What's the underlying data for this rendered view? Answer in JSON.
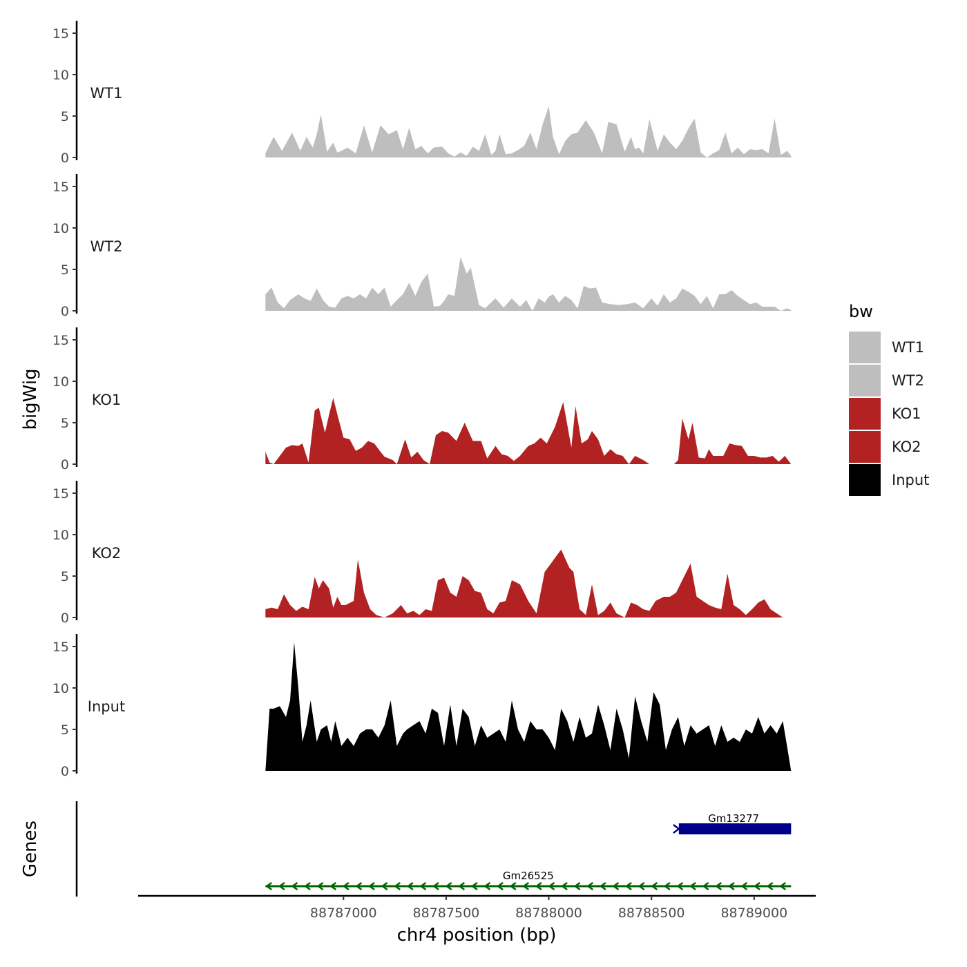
{
  "chart_data": {
    "type": "area",
    "title": "",
    "ylabel": "bigWig",
    "genes_label": "Genes",
    "xlabel": "chr4 position (bp)",
    "xlim": [
      88786000,
      88789300
    ],
    "ylim": [
      0,
      16
    ],
    "yticks": [
      "0",
      "5",
      "10",
      "15"
    ],
    "xticks": [
      {
        "pos": 88787000,
        "label": "88787000"
      },
      {
        "pos": 88787500,
        "label": "88787500"
      },
      {
        "pos": 88788000,
        "label": "88788000"
      },
      {
        "pos": 88788500,
        "label": "88788500"
      },
      {
        "pos": 88789000,
        "label": "88789000"
      }
    ],
    "legend": {
      "title": "bw",
      "position": "right",
      "entries": [
        {
          "label": "WT1",
          "color": "#bebebe"
        },
        {
          "label": "WT2",
          "color": "#bebebe"
        },
        {
          "label": "KO1",
          "color": "#b22222"
        },
        {
          "label": "KO2",
          "color": "#b22222"
        },
        {
          "label": "Input",
          "color": "#000000"
        }
      ]
    },
    "series": [
      {
        "name": "WT1",
        "color": "#bebebe",
        "x": [
          88786620,
          88786660,
          88786700,
          88786750,
          88786790,
          88786820,
          88786850,
          88786870,
          88786890,
          88786920,
          88786950,
          88786970,
          88786990,
          88787020,
          88787060,
          88787100,
          88787140,
          88787180,
          88787220,
          88787260,
          88787290,
          88787320,
          88787350,
          88787380,
          88787410,
          88787440,
          88787480,
          88787510,
          88787540,
          88787570,
          88787600,
          88787630,
          88787660,
          88787690,
          88787720,
          88787740,
          88787760,
          88787790,
          88787820,
          88787850,
          88787880,
          88787910,
          88787940,
          88787970,
          88788000,
          88788020,
          88788050,
          88788080,
          88788110,
          88788140,
          88788180,
          88788220,
          88788260,
          88788290,
          88788330,
          88788370,
          88788400,
          88788420,
          88788440,
          88788460,
          88788490,
          88788530,
          88788560,
          88788590,
          88788620,
          88788650,
          88788680,
          88788710,
          88788740,
          88788770,
          88788800,
          88788830,
          88788860,
          88788890,
          88788920,
          88788950,
          88788980,
          88789010,
          88789040,
          88789070,
          88789100,
          88789130,
          88789160,
          88789180
        ],
        "y": [
          0.5,
          2.5,
          0.8,
          3.0,
          0.8,
          2.5,
          1.2,
          2.8,
          5.2,
          0.7,
          1.8,
          0.6,
          0.8,
          1.2,
          0.5,
          3.9,
          0.6,
          3.9,
          2.8,
          3.3,
          1.0,
          3.6,
          1.0,
          1.4,
          0.5,
          1.2,
          1.3,
          0.5,
          0.1,
          0.6,
          0.2,
          1.3,
          0.8,
          2.8,
          0.3,
          0.8,
          2.8,
          0.4,
          0.5,
          0.9,
          1.4,
          3.0,
          1.0,
          4.0,
          6.2,
          2.5,
          0.4,
          2.0,
          2.8,
          3.0,
          4.5,
          3.0,
          0.5,
          4.3,
          4.0,
          0.7,
          2.5,
          1.0,
          1.2,
          0.5,
          4.6,
          0.8,
          2.8,
          1.8,
          1.0,
          2.0,
          3.5,
          4.7,
          0.6,
          0.0,
          0.5,
          0.9,
          3.0,
          0.5,
          1.2,
          0.4,
          1.0,
          0.9,
          1.0,
          0.5,
          4.7,
          0.3,
          0.8,
          0.2
        ]
      },
      {
        "name": "WT2",
        "color": "#bebebe",
        "x": [
          88786620,
          88786650,
          88786680,
          88786710,
          88786740,
          88786780,
          88786810,
          88786840,
          88786870,
          88786900,
          88786930,
          88786960,
          88786990,
          88787020,
          88787050,
          88787080,
          88787110,
          88787140,
          88787170,
          88787200,
          88787230,
          88787260,
          88787290,
          88787320,
          88787350,
          88787380,
          88787410,
          88787440,
          88787470,
          88787490,
          88787510,
          88787540,
          88787570,
          88787600,
          88787620,
          88787640,
          88787660,
          88787690,
          88787710,
          88787740,
          88787780,
          88787820,
          88787860,
          88787890,
          88787920,
          88787950,
          88787980,
          88788000,
          88788020,
          88788050,
          88788080,
          88788110,
          88788140,
          88788170,
          88788200,
          88788230,
          88788260,
          88788300,
          88788340,
          88788380,
          88788420,
          88788460,
          88788500,
          88788530,
          88788560,
          88788590,
          88788620,
          88788650,
          88788680,
          88788710,
          88788740,
          88788770,
          88788800,
          88788830,
          88788860,
          88788890,
          88788920,
          88788950,
          88788980,
          88789010,
          88789040,
          88789070,
          88789100,
          88789130,
          88789160,
          88789180
        ],
        "y": [
          2.0,
          2.8,
          1.0,
          0.3,
          1.3,
          2.0,
          1.5,
          1.2,
          2.7,
          1.3,
          0.5,
          0.4,
          1.5,
          1.8,
          1.5,
          2.0,
          1.5,
          2.8,
          2.0,
          2.8,
          0.5,
          1.3,
          2.0,
          3.4,
          1.8,
          3.5,
          4.5,
          0.5,
          0.6,
          1.2,
          2.0,
          1.8,
          6.5,
          4.5,
          5.2,
          3.0,
          0.7,
          0.3,
          0.8,
          1.5,
          0.4,
          1.5,
          0.5,
          1.3,
          0.0,
          1.5,
          1.0,
          1.7,
          2.0,
          1.0,
          1.8,
          1.3,
          0.3,
          3.0,
          2.7,
          2.8,
          1.0,
          0.8,
          0.7,
          0.8,
          1.0,
          0.3,
          1.5,
          0.6,
          2.0,
          1.0,
          1.5,
          2.7,
          2.3,
          1.8,
          0.8,
          1.8,
          0.3,
          2.0,
          2.0,
          2.5,
          1.8,
          1.3,
          0.8,
          1.0,
          0.5,
          0.5,
          0.5,
          0.0,
          0.3,
          0.1
        ]
      },
      {
        "name": "KO1",
        "color": "#b22222",
        "x": [
          88786620,
          88786640,
          88786660,
          88786690,
          88786720,
          88786750,
          88786780,
          88786800,
          88786830,
          88786860,
          88786880,
          88786910,
          88786930,
          88786950,
          88786970,
          88787000,
          88787030,
          88787060,
          88787090,
          88787120,
          88787150,
          88787180,
          88787200,
          88787240,
          88787260,
          88787300,
          88787330,
          88787360,
          88787390,
          88787420,
          88787450,
          88787480,
          88787510,
          88787550,
          88787590,
          88787630,
          88787670,
          88787700,
          88787740,
          88787770,
          88787800,
          88787830,
          88787860,
          88787900,
          88787930,
          88787960,
          88787990,
          88788030,
          88788070,
          88788110,
          88788130,
          88788160,
          88788190,
          88788210,
          88788240,
          88788270,
          88788300,
          88788330,
          88788360,
          88788390,
          88788420,
          88788460,
          88788490,
          88788520,
          88788530,
          88788550,
          88788580,
          88788610,
          88788630,
          88788650,
          88788680,
          88788700,
          88788730,
          88788760,
          88788780,
          88788800,
          88788820,
          88788850,
          88788880,
          88788910,
          88788940,
          88788970,
          88789000,
          88789030,
          88789060,
          88789090,
          88789120,
          88789150,
          88789180
        ],
        "y": [
          1.5,
          0.2,
          0.0,
          1.0,
          2.0,
          2.3,
          2.2,
          2.5,
          0.2,
          6.5,
          6.8,
          3.8,
          6.0,
          8.0,
          6.0,
          3.2,
          3.0,
          1.6,
          2.0,
          2.8,
          2.5,
          1.5,
          0.9,
          0.5,
          0.0,
          3.0,
          0.8,
          1.5,
          0.5,
          0.0,
          3.5,
          4.0,
          3.8,
          2.8,
          5.0,
          2.8,
          2.8,
          0.7,
          2.2,
          1.2,
          1.0,
          0.4,
          1.0,
          2.2,
          2.5,
          3.2,
          2.5,
          4.5,
          7.5,
          2.0,
          7.0,
          2.5,
          3.0,
          4.0,
          3.0,
          1.0,
          1.8,
          1.2,
          1.0,
          0.0,
          1.0,
          0.5,
          0.0,
          0.0,
          0.0,
          0.0,
          0.0,
          0.0,
          0.5,
          5.5,
          3.0,
          5.0,
          0.8,
          0.7,
          1.8,
          1.0,
          1.0,
          1.0,
          2.5,
          2.3,
          2.2,
          1.0,
          1.0,
          0.8,
          0.8,
          1.0,
          0.3,
          1.0,
          0.0
        ]
      },
      {
        "name": "KO2",
        "color": "#b22222",
        "x": [
          88786620,
          88786650,
          88786680,
          88786710,
          88786740,
          88786770,
          88786800,
          88786830,
          88786860,
          88786880,
          88786900,
          88786930,
          88786950,
          88786970,
          88786990,
          88787010,
          88787050,
          88787070,
          88787100,
          88787130,
          88787160,
          88787200,
          88787240,
          88787280,
          88787310,
          88787340,
          88787370,
          88787400,
          88787430,
          88787460,
          88787490,
          88787520,
          88787550,
          88787580,
          88787610,
          88787640,
          88787670,
          88787700,
          88787730,
          88787760,
          88787790,
          88787820,
          88787860,
          88787900,
          88787940,
          88787980,
          88788010,
          88788030,
          88788060,
          88788100,
          88788120,
          88788150,
          88788180,
          88788210,
          88788240,
          88788270,
          88788300,
          88788330,
          88788370,
          88788400,
          88788430,
          88788460,
          88788490,
          88788520,
          88788560,
          88788590,
          88788620,
          88788650,
          88788690,
          88788720,
          88788750,
          88788780,
          88788810,
          88788840,
          88788870,
          88788900,
          88788930,
          88788960,
          88788990,
          88789020,
          88789050,
          88789080,
          88789110,
          88789140
        ],
        "y": [
          1.0,
          1.2,
          1.0,
          2.8,
          1.5,
          0.8,
          1.3,
          1.0,
          4.9,
          3.5,
          4.5,
          3.5,
          1.2,
          2.5,
          1.5,
          1.5,
          2.0,
          7.0,
          3.0,
          1.0,
          0.3,
          0.0,
          0.5,
          1.5,
          0.5,
          0.8,
          0.3,
          1.0,
          0.8,
          4.5,
          4.8,
          3.0,
          2.5,
          5.0,
          4.5,
          3.2,
          3.0,
          1.0,
          0.5,
          1.8,
          2.0,
          4.5,
          4.0,
          2.0,
          0.5,
          5.5,
          6.5,
          7.2,
          8.2,
          6.0,
          5.5,
          1.0,
          0.3,
          4.0,
          0.3,
          0.8,
          1.8,
          0.5,
          0.0,
          1.8,
          1.5,
          1.0,
          0.8,
          2.0,
          2.5,
          2.5,
          3.0,
          4.5,
          6.5,
          2.5,
          2.0,
          1.5,
          1.2,
          1.0,
          5.3,
          1.5,
          1.0,
          0.3,
          1.0,
          1.8,
          2.2,
          1.0,
          0.5,
          0.0
        ]
      },
      {
        "name": "Input",
        "color": "#000000",
        "x": [
          88786620,
          88786640,
          88786660,
          88786690,
          88786720,
          88786740,
          88786760,
          88786780,
          88786800,
          88786820,
          88786840,
          88786870,
          88786890,
          88786920,
          88786940,
          88786960,
          88786990,
          88787020,
          88787050,
          88787080,
          88787110,
          88787140,
          88787170,
          88787200,
          88787230,
          88787260,
          88787290,
          88787310,
          88787340,
          88787370,
          88787400,
          88787430,
          88787460,
          88787490,
          88787520,
          88787550,
          88787580,
          88787610,
          88787640,
          88787670,
          88787700,
          88787730,
          88787760,
          88787790,
          88787820,
          88787850,
          88787880,
          88787910,
          88787940,
          88787970,
          88788000,
          88788030,
          88788060,
          88788090,
          88788120,
          88788150,
          88788180,
          88788210,
          88788240,
          88788270,
          88788300,
          88788330,
          88788360,
          88788390,
          88788420,
          88788450,
          88788480,
          88788510,
          88788540,
          88788570,
          88788600,
          88788630,
          88788660,
          88788690,
          88788720,
          88788750,
          88788780,
          88788810,
          88788840,
          88788870,
          88788900,
          88788930,
          88788960,
          88788990,
          88789020,
          88789050,
          88789080,
          88789110,
          88789140,
          88789160,
          88789180
        ],
        "y": [
          0.0,
          7.5,
          7.5,
          7.8,
          6.5,
          8.5,
          15.5,
          10.0,
          3.5,
          5.5,
          8.5,
          3.5,
          5.0,
          5.5,
          3.5,
          6.0,
          3.0,
          4.0,
          3.0,
          4.5,
          5.0,
          5.0,
          4.0,
          5.5,
          8.5,
          3.0,
          4.5,
          5.0,
          5.5,
          6.0,
          4.5,
          7.5,
          7.0,
          3.0,
          8.0,
          3.0,
          7.5,
          6.5,
          3.0,
          5.5,
          4.0,
          4.5,
          5.0,
          3.5,
          8.5,
          5.0,
          3.5,
          6.0,
          5.0,
          5.0,
          4.0,
          2.5,
          7.5,
          6.0,
          3.5,
          6.5,
          4.0,
          4.5,
          8.0,
          5.5,
          2.5,
          7.5,
          5.0,
          1.5,
          9.0,
          6.0,
          3.5,
          9.5,
          8.0,
          2.5,
          5.0,
          6.5,
          3.0,
          5.5,
          4.5,
          5.0,
          5.5,
          3.0,
          5.5,
          3.5,
          4.0,
          3.5,
          5.0,
          4.5,
          6.5,
          4.5,
          5.5,
          4.5,
          6.0,
          3.0,
          0.0
        ]
      }
    ],
    "genes": [
      {
        "name": "Gm13277",
        "start": 88788620,
        "end": 88789180,
        "strand": "+",
        "color": "#00008b",
        "type": "thick"
      },
      {
        "name": "Gm26525",
        "start": 88786620,
        "end": 88789180,
        "strand": "-",
        "color": "#006400",
        "type": "thin"
      }
    ]
  }
}
